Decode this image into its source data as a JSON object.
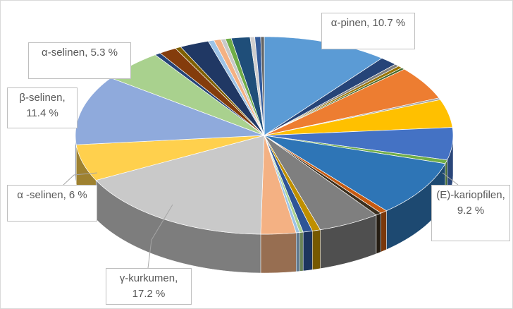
{
  "chart_data": {
    "type": "pie3d",
    "values": [
      10.7,
      1.5,
      0.4,
      0.4,
      0.3,
      5.5,
      0.3,
      4.6,
      5.3,
      0.6,
      9.2,
      0.6,
      0.5,
      5.3,
      0.7,
      0.8,
      0.3,
      0.3,
      3.0,
      17.2,
      6.0,
      11.4,
      5.3,
      0.5,
      1.5,
      0.5,
      2.5,
      0.5,
      0.6,
      0.4,
      0.5,
      1.6,
      0.4,
      0.5,
      0.3
    ],
    "value_labels": [
      "α-pinen, 10.7 %",
      null,
      null,
      null,
      null,
      null,
      null,
      null,
      null,
      null,
      "(E)-kariopfilen, 9.2 %",
      null,
      null,
      null,
      null,
      null,
      null,
      null,
      null,
      "γ-kurkumen, 17.2 %",
      "α -selinen, 6 %",
      "β-selinen, 11.4 %",
      "α-selinen, 5.3 %",
      null,
      null,
      null,
      null,
      null,
      null,
      null,
      null,
      null,
      null,
      null,
      null
    ],
    "colors": [
      "#5b9bd5",
      "#264478",
      "#7f7f7f",
      "#997300",
      "#43682b",
      "#ed7d31",
      "#a5a5a5",
      "#ffc000",
      "#4472c4",
      "#70ad47",
      "#2e75b6",
      "#c55a11",
      "#3b2f1e",
      "#7f7f7f",
      "#bf8f00",
      "#2f5597",
      "#a9d18e",
      "#9dc3e6",
      "#f4b183",
      "#c9c9c9",
      "#ffd04d",
      "#8faadc",
      "#a9d18e",
      "#264478",
      "#843c0c",
      "#7f6000",
      "#203864",
      "#9dc3e6",
      "#f4b183",
      "#c9c9c9",
      "#70ad47",
      "#1f4e79",
      "#d0cece",
      "#335b9a",
      "#636363"
    ]
  }
}
